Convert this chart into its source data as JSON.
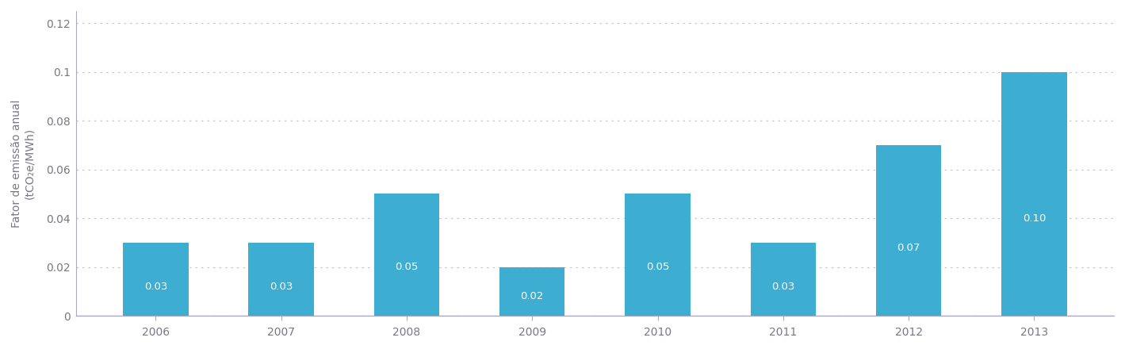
{
  "years": [
    "2006",
    "2007",
    "2008",
    "2009",
    "2010",
    "2011",
    "2012",
    "2013"
  ],
  "values": [
    0.03,
    0.03,
    0.05,
    0.02,
    0.05,
    0.03,
    0.07,
    0.1
  ],
  "labels": [
    "0.03",
    "0.03",
    "0.05",
    "0.02",
    "0.05",
    "0.03",
    "0.07",
    "0.10"
  ],
  "bar_color": "#3dadd1",
  "label_color": "#ffffff",
  "ylabel_line1": "Fator de emissão anual",
  "ylabel_line2": "(tCO₂e/MWh)",
  "ylim": [
    0,
    0.125
  ],
  "ytick_values": [
    0,
    0.02,
    0.04,
    0.06,
    0.08,
    0.1,
    0.12
  ],
  "ytick_labels": [
    "0",
    "0.02",
    "0.04",
    "0.06",
    "0.08",
    "0.1",
    "0.12"
  ],
  "grid_color": "#c8c8d0",
  "axis_color": "#888899",
  "spine_color": "#aaaabb",
  "background_color": "#ffffff",
  "label_fontsize": 9.5,
  "tick_fontsize": 10,
  "ylabel_fontsize": 10,
  "bar_width": 0.52,
  "tick_color": "#777788"
}
